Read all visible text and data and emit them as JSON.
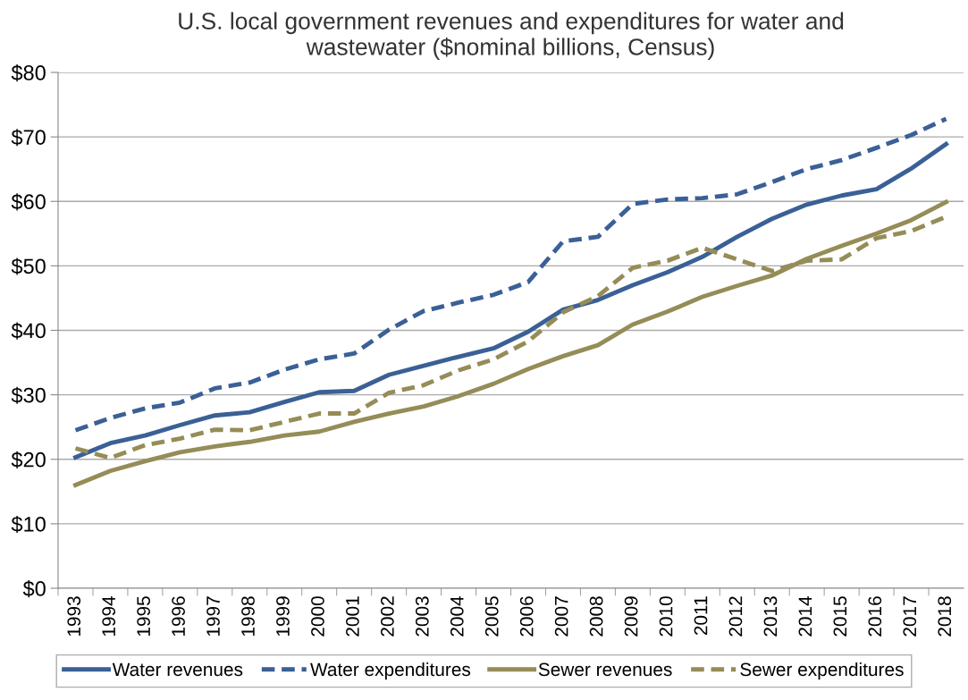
{
  "chart_data": {
    "type": "line",
    "title": "U.S. local government revenues and expenditures for water and\nwastewater ($nominal billions, Census)",
    "categories": [
      "1993",
      "1994",
      "1995",
      "1996",
      "1997",
      "1998",
      "1999",
      "2000",
      "2001",
      "2002",
      "2003",
      "2004",
      "2005",
      "2006",
      "2007",
      "2008",
      "2009",
      "2010",
      "2011",
      "2012",
      "2013",
      "2014",
      "2015",
      "2016",
      "2017",
      "2018"
    ],
    "series": [
      {
        "name": "Water revenues",
        "color": "#3a6096",
        "line_style": "solid",
        "values": [
          20.3,
          22.5,
          23.7,
          25.3,
          26.8,
          27.3,
          28.9,
          30.4,
          30.6,
          33.1,
          34.5,
          35.9,
          37.2,
          39.8,
          43.2,
          44.7,
          47.0,
          49.0,
          51.4,
          54.5,
          57.3,
          59.5,
          60.9,
          61.9,
          65.1,
          68.9
        ]
      },
      {
        "name": "Water expenditures",
        "color": "#3a6096",
        "line_style": "dashed",
        "values": [
          24.5,
          26.4,
          27.9,
          28.8,
          31.0,
          31.9,
          33.9,
          35.5,
          36.4,
          40.1,
          43.0,
          44.3,
          45.5,
          47.5,
          53.8,
          54.5,
          59.6,
          60.3,
          60.5,
          61.1,
          63.0,
          65.0,
          66.4,
          68.3,
          70.3,
          72.8
        ]
      },
      {
        "name": "Sewer revenues",
        "color": "#958c57",
        "line_style": "solid",
        "values": [
          16.0,
          18.2,
          19.7,
          21.1,
          22.0,
          22.7,
          23.7,
          24.3,
          25.8,
          27.1,
          28.2,
          29.8,
          31.7,
          34.0,
          36.0,
          37.7,
          40.9,
          42.9,
          45.2,
          46.9,
          48.5,
          51.1,
          53.1,
          55.0,
          57.1,
          59.9
        ]
      },
      {
        "name": "Sewer expenditures",
        "color": "#958c57",
        "line_style": "dashed",
        "values": [
          21.7,
          20.2,
          22.2,
          23.2,
          24.6,
          24.5,
          25.8,
          27.1,
          27.1,
          30.3,
          31.5,
          33.8,
          35.5,
          38.3,
          42.8,
          45.3,
          49.7,
          50.8,
          52.8,
          51.0,
          49.2,
          50.8,
          51.0,
          54.3,
          55.4,
          57.6
        ]
      }
    ],
    "ylim": [
      0,
      80
    ],
    "yticks": [
      {
        "value": 0,
        "label": "$0"
      },
      {
        "value": 10,
        "label": "$10"
      },
      {
        "value": 20,
        "label": "$20"
      },
      {
        "value": 30,
        "label": "$30"
      },
      {
        "value": 40,
        "label": "$40"
      },
      {
        "value": 50,
        "label": "$50"
      },
      {
        "value": 60,
        "label": "$60"
      },
      {
        "value": 70,
        "label": "$70"
      },
      {
        "value": 80,
        "label": "$80"
      }
    ],
    "grid": "y",
    "legend": "bottom",
    "marker": "none"
  }
}
